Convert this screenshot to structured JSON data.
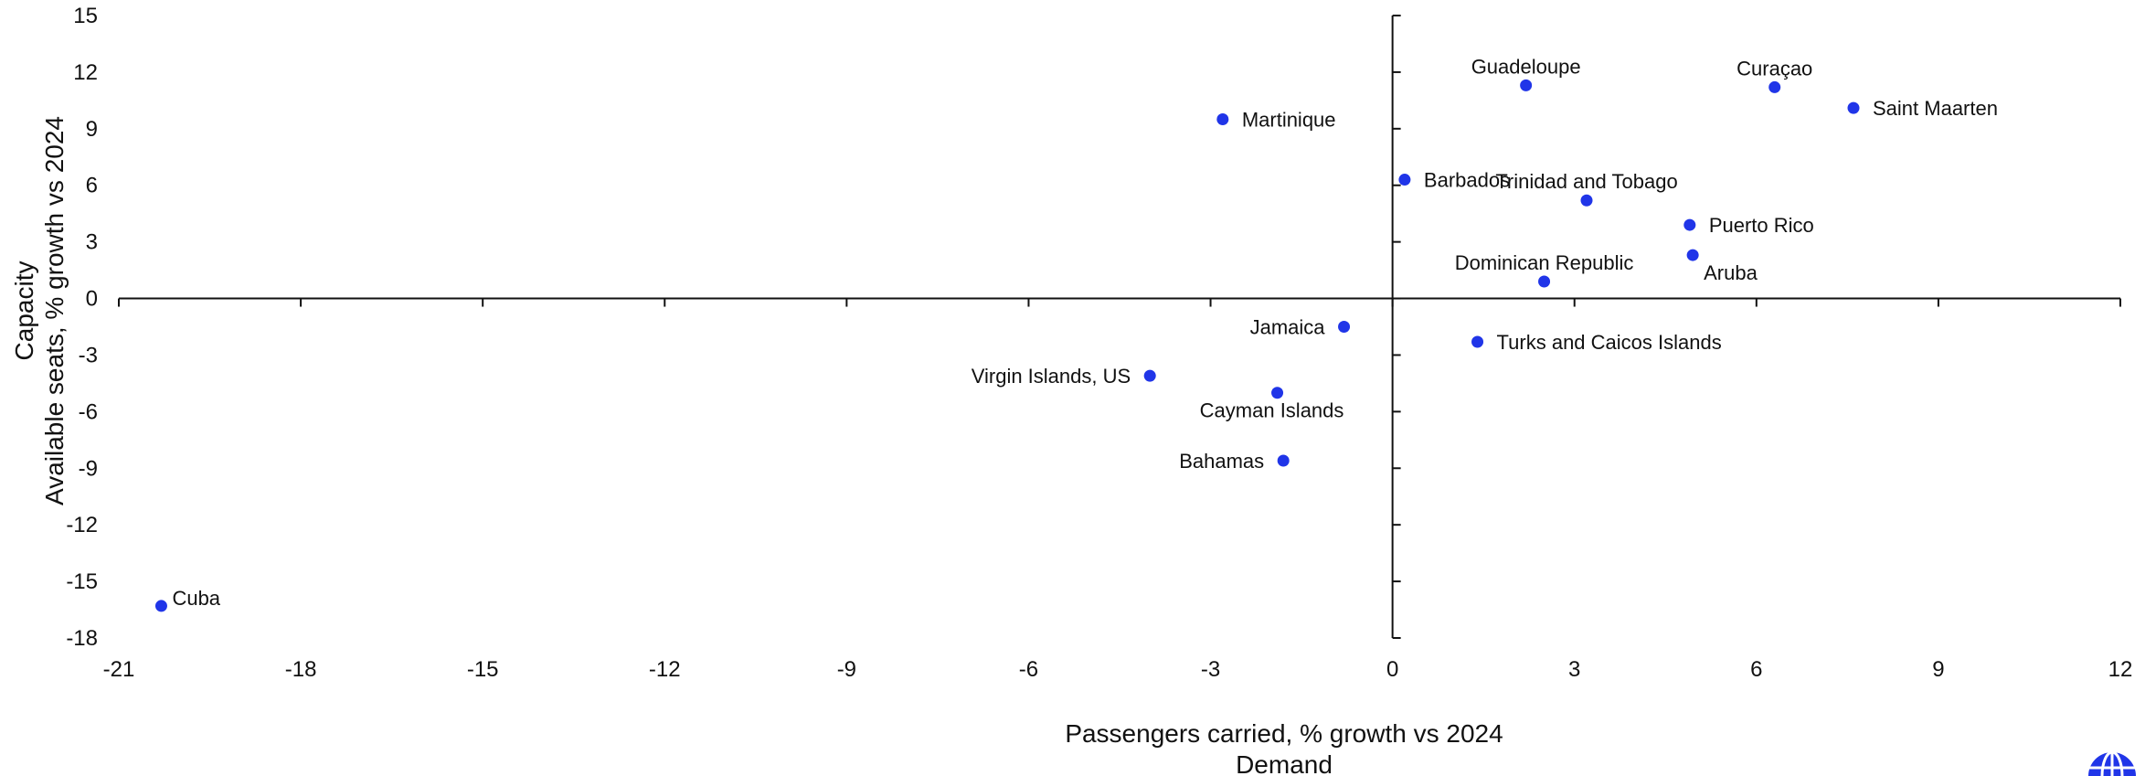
{
  "chart_data": {
    "type": "scatter",
    "title": "",
    "xlabel": "Passengers carried, % growth vs 2024",
    "xlabel_sub": "Demand",
    "ylabel": "Available seats, % growth vs 2024",
    "ylabel_sub": "Capacity",
    "xlim": [
      -21,
      12
    ],
    "ylim": [
      -18,
      15
    ],
    "x_ticks": [
      -21,
      -18,
      -15,
      -12,
      -9,
      -6,
      -3,
      0,
      3,
      6,
      9,
      12
    ],
    "y_ticks": [
      15,
      12,
      9,
      6,
      3,
      0,
      -3,
      -6,
      -9,
      -12,
      -15,
      -18
    ],
    "grid": false,
    "legend": "none",
    "point_color": "#2035e8",
    "points": [
      {
        "label": "Cuba",
        "x": -20.3,
        "y": -16.3,
        "pos": "right-up"
      },
      {
        "label": "Martinique",
        "x": -2.8,
        "y": 9.5,
        "pos": "right"
      },
      {
        "label": "Jamaica",
        "x": -0.8,
        "y": -1.5,
        "pos": "left"
      },
      {
        "label": "Virgin Islands, US",
        "x": -4.0,
        "y": -4.1,
        "pos": "left"
      },
      {
        "label": "Cayman Islands",
        "x": -1.9,
        "y": -5.0,
        "pos": "below"
      },
      {
        "label": "Bahamas",
        "x": -1.8,
        "y": -8.6,
        "pos": "left"
      },
      {
        "label": "Barbados",
        "x": 0.2,
        "y": 6.3,
        "pos": "right"
      },
      {
        "label": "Guadeloupe",
        "x": 2.2,
        "y": 11.3,
        "pos": "above"
      },
      {
        "label": "Trinidad and Tobago",
        "x": 3.2,
        "y": 5.2,
        "pos": "above"
      },
      {
        "label": "Dominican Republic",
        "x": 2.5,
        "y": 0.9,
        "pos": "above"
      },
      {
        "label": "Turks and Caicos Islands",
        "x": 1.4,
        "y": -2.3,
        "pos": "right"
      },
      {
        "label": "Puerto Rico",
        "x": 4.9,
        "y": 3.9,
        "pos": "right"
      },
      {
        "label": "Aruba",
        "x": 4.95,
        "y": 2.3,
        "pos": "below"
      },
      {
        "label": "Curaçao",
        "x": 6.3,
        "y": 11.2,
        "pos": "above"
      },
      {
        "label": "Saint Maarten",
        "x": 7.6,
        "y": 10.1,
        "pos": "right"
      }
    ]
  }
}
